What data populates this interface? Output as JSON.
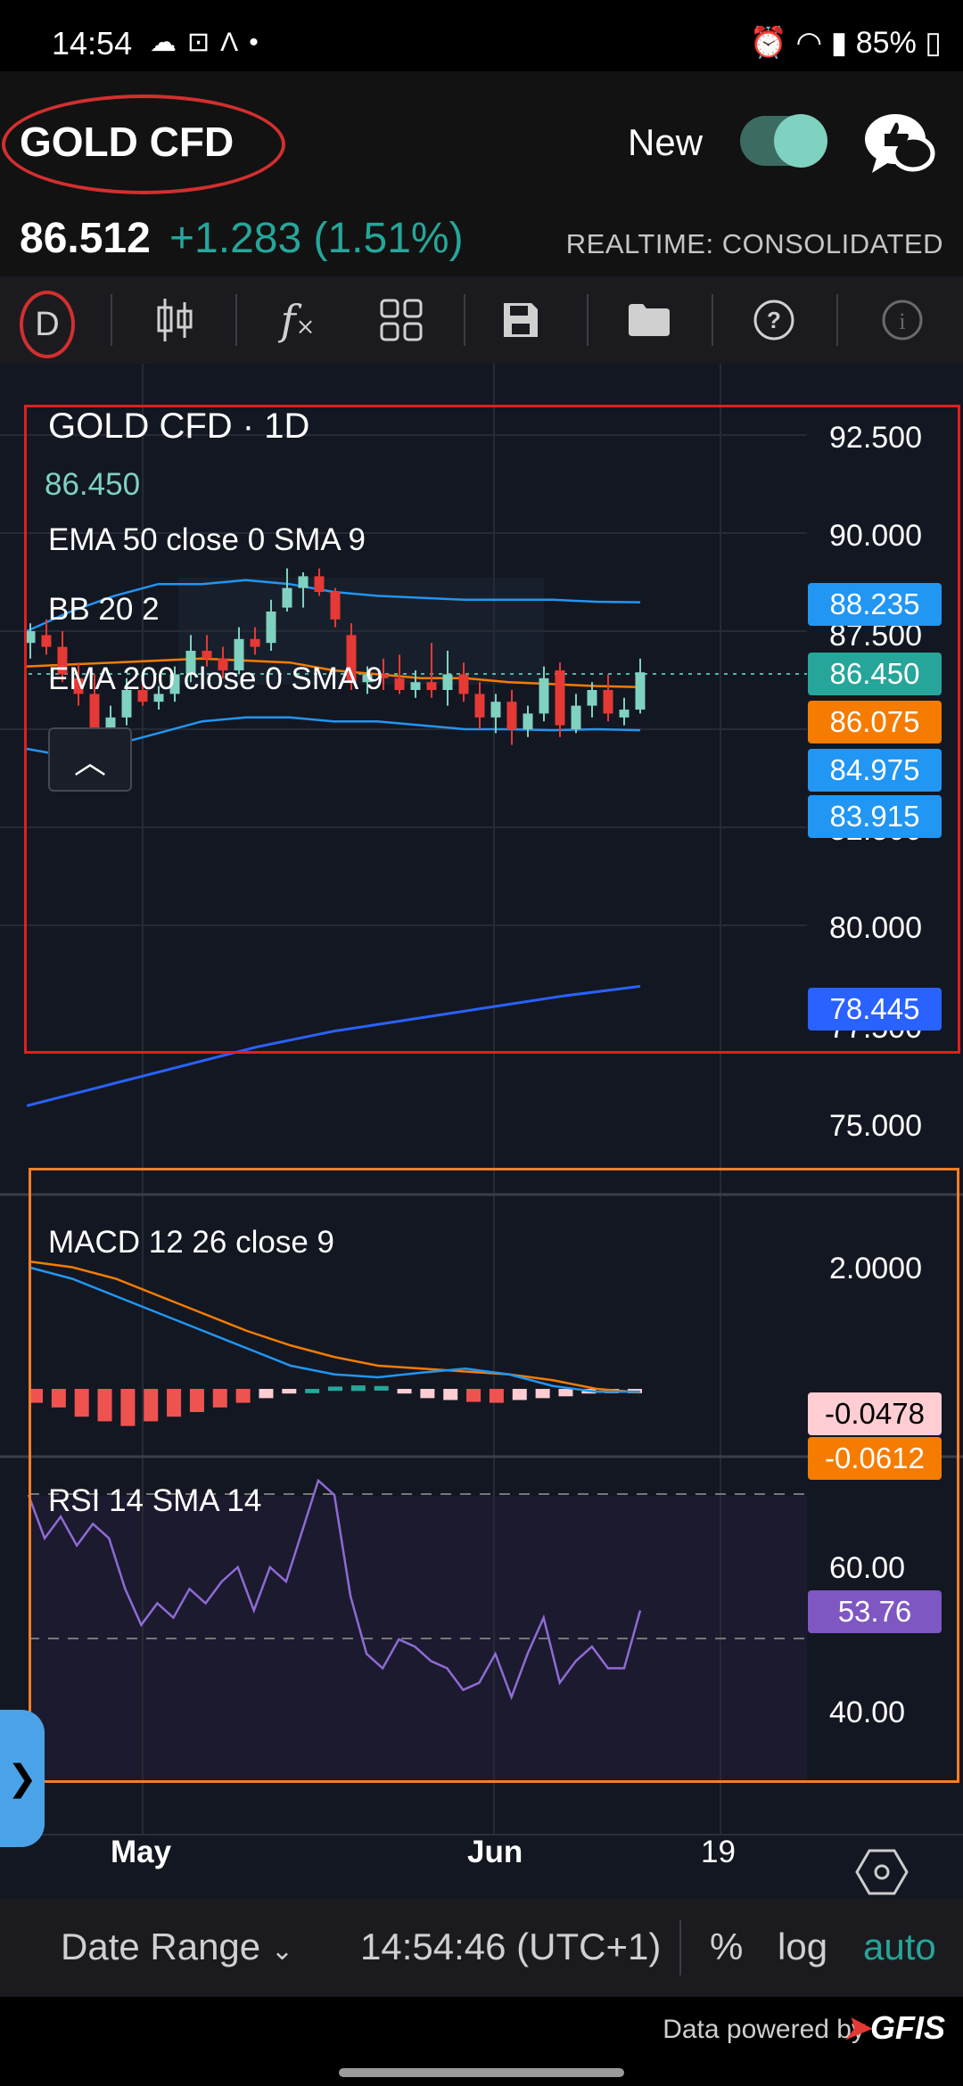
{
  "status_bar": {
    "time": "14:54",
    "left_icons": [
      "cloud-icon",
      "vpn-icon",
      "a-logo-icon",
      "dot-icon"
    ],
    "battery": "85%",
    "right_icons": [
      "alarm-icon",
      "wifi-icon",
      "signal-icon",
      "battery-icon"
    ]
  },
  "header": {
    "title": "GOLD CFD",
    "new_label": "New",
    "toggle_on": true,
    "price": "86.512",
    "change": "+1.283 (1.51%)",
    "realtime": "REALTIME: CONSOLIDATED"
  },
  "toolbar": {
    "interval": "D",
    "buttons": [
      "candles-icon",
      "function-icon",
      "layout-icon",
      "save-icon",
      "folder-icon",
      "help-icon",
      "info-icon"
    ]
  },
  "legend": {
    "symbol": "GOLD CFD · 1D",
    "last": "86.450",
    "ema50": "EMA 50 close 0 SMA 9",
    "bb": "BB 20 2",
    "ema200": "EMA 200 close 0 SMA 9",
    "macd": "MACD 12 26 close 9",
    "rsi": "RSI 14 SMA 14"
  },
  "price_axis": [
    "92.500",
    "90.000",
    "87.500",
    "82.500",
    "80.000",
    "77.500",
    "75.000"
  ],
  "price_tags": [
    {
      "value": "88.235",
      "color": "#2196f3"
    },
    {
      "value": "86.450",
      "color": "#26a69a"
    },
    {
      "value": "86.075",
      "color": "#f57c00"
    },
    {
      "value": "84.975",
      "color": "#2196f3"
    },
    {
      "value": "83.915",
      "color": "#2196f3"
    },
    {
      "value": "78.445",
      "color": "#2962ff"
    }
  ],
  "macd_axis": [
    "2.0000"
  ],
  "macd_tags": [
    {
      "value": "-0.0478",
      "color": "#ffcdd2",
      "text": "#000"
    },
    {
      "value": "-0.0612",
      "color": "#f57c00",
      "text": "#fff"
    }
  ],
  "rsi_axis": [
    "60.00",
    "40.00"
  ],
  "rsi_tag": {
    "value": "53.76",
    "color": "#7e57c2"
  },
  "x_axis": [
    "May",
    "Jun",
    "19"
  ],
  "bottom_bar": {
    "date_range": "Date Range",
    "time": "14:54:46 (UTC+1)",
    "percent": "%",
    "log": "log",
    "auto": "auto"
  },
  "footer": {
    "powered_by": "Data powered by",
    "brand": "GFIS"
  },
  "chart_data": {
    "type": "candlestick",
    "title": "GOLD CFD · 1D",
    "ylim": [
      74.0,
      93.5
    ],
    "candles": [
      {
        "o": 87.2,
        "h": 87.7,
        "l": 86.8,
        "c": 87.5
      },
      {
        "o": 87.4,
        "h": 87.8,
        "l": 86.9,
        "c": 87.1
      },
      {
        "o": 87.1,
        "h": 87.5,
        "l": 86.2,
        "c": 86.4
      },
      {
        "o": 86.3,
        "h": 86.7,
        "l": 85.6,
        "c": 85.9
      },
      {
        "o": 85.9,
        "h": 86.4,
        "l": 84.5,
        "c": 84.8
      },
      {
        "o": 84.9,
        "h": 85.6,
        "l": 84.7,
        "c": 85.3
      },
      {
        "o": 85.3,
        "h": 86.3,
        "l": 85.1,
        "c": 86.0
      },
      {
        "o": 86.0,
        "h": 86.2,
        "l": 85.6,
        "c": 85.7
      },
      {
        "o": 85.7,
        "h": 86.1,
        "l": 85.5,
        "c": 85.9
      },
      {
        "o": 85.9,
        "h": 86.6,
        "l": 85.7,
        "c": 86.4
      },
      {
        "o": 86.4,
        "h": 87.4,
        "l": 86.2,
        "c": 87.0
      },
      {
        "o": 87.0,
        "h": 87.4,
        "l": 86.6,
        "c": 86.8
      },
      {
        "o": 86.8,
        "h": 87.1,
        "l": 86.3,
        "c": 86.5
      },
      {
        "o": 86.5,
        "h": 87.6,
        "l": 86.4,
        "c": 87.3
      },
      {
        "o": 87.3,
        "h": 87.6,
        "l": 86.9,
        "c": 87.1
      },
      {
        "o": 87.2,
        "h": 88.3,
        "l": 87.0,
        "c": 88.0
      },
      {
        "o": 88.1,
        "h": 89.1,
        "l": 88.0,
        "c": 88.6
      },
      {
        "o": 88.6,
        "h": 89.0,
        "l": 88.1,
        "c": 88.9
      },
      {
        "o": 88.9,
        "h": 89.1,
        "l": 88.4,
        "c": 88.5
      },
      {
        "o": 88.5,
        "h": 88.6,
        "l": 87.6,
        "c": 87.8
      },
      {
        "o": 87.4,
        "h": 87.7,
        "l": 86.0,
        "c": 86.2
      },
      {
        "o": 86.2,
        "h": 86.6,
        "l": 85.9,
        "c": 86.4
      },
      {
        "o": 86.4,
        "h": 86.8,
        "l": 86.0,
        "c": 86.3
      },
      {
        "o": 86.3,
        "h": 86.9,
        "l": 85.9,
        "c": 86.0
      },
      {
        "o": 86.0,
        "h": 86.5,
        "l": 85.8,
        "c": 86.2
      },
      {
        "o": 86.2,
        "h": 87.2,
        "l": 85.8,
        "c": 86.0
      },
      {
        "o": 86.0,
        "h": 87.0,
        "l": 85.6,
        "c": 86.4
      },
      {
        "o": 86.4,
        "h": 86.7,
        "l": 85.7,
        "c": 85.9
      },
      {
        "o": 85.9,
        "h": 86.2,
        "l": 85.0,
        "c": 85.3
      },
      {
        "o": 85.3,
        "h": 85.9,
        "l": 84.9,
        "c": 85.7
      },
      {
        "o": 85.7,
        "h": 86.0,
        "l": 84.6,
        "c": 85.0
      },
      {
        "o": 85.0,
        "h": 85.6,
        "l": 84.8,
        "c": 85.4
      },
      {
        "o": 85.4,
        "h": 86.6,
        "l": 85.2,
        "c": 86.3
      },
      {
        "o": 86.5,
        "h": 86.7,
        "l": 84.8,
        "c": 85.1
      },
      {
        "o": 85.0,
        "h": 85.9,
        "l": 84.9,
        "c": 85.6
      },
      {
        "o": 85.6,
        "h": 86.2,
        "l": 85.3,
        "c": 86.0
      },
      {
        "o": 86.0,
        "h": 86.4,
        "l": 85.2,
        "c": 85.4
      },
      {
        "o": 85.3,
        "h": 85.8,
        "l": 85.1,
        "c": 85.5
      },
      {
        "o": 85.5,
        "h": 86.8,
        "l": 85.4,
        "c": 86.45
      }
    ],
    "bb_upper": [
      87.5,
      88.0,
      88.4,
      88.7,
      88.7,
      88.8,
      88.7,
      88.5,
      88.4,
      88.35,
      88.3,
      88.3,
      88.3,
      88.25,
      88.235
    ],
    "bb_lower": [
      84.5,
      84.3,
      84.6,
      84.9,
      85.2,
      85.3,
      85.3,
      85.2,
      85.2,
      85.1,
      85.0,
      85.0,
      84.975,
      85.0,
      84.975
    ],
    "ema50": [
      86.6,
      86.65,
      86.7,
      86.75,
      86.8,
      86.75,
      86.7,
      86.5,
      86.4,
      86.3,
      86.3,
      86.2,
      86.15,
      86.1,
      86.075
    ],
    "ema200": [
      75.4,
      75.9,
      76.4,
      76.9,
      77.3,
      77.6,
      77.9,
      78.2,
      78.445
    ],
    "macd_line": [
      2.1,
      1.9,
      1.6,
      1.3,
      1.0,
      0.7,
      0.4,
      0.25,
      0.2,
      0.28,
      0.35,
      0.25,
      0.05,
      -0.05,
      -0.0478
    ],
    "macd_signal": [
      2.2,
      2.1,
      1.9,
      1.6,
      1.3,
      1.0,
      0.75,
      0.55,
      0.4,
      0.35,
      0.3,
      0.25,
      0.15,
      0.0,
      -0.0612
    ],
    "macd_hist": [
      -0.15,
      -0.2,
      -0.3,
      -0.35,
      -0.4,
      -0.35,
      -0.3,
      -0.25,
      -0.2,
      -0.15,
      -0.1,
      -0.05,
      0.0,
      0.04,
      0.06,
      0.05,
      -0.05,
      -0.1,
      -0.12,
      -0.14,
      -0.15,
      -0.12,
      -0.1,
      -0.08,
      -0.05,
      -0.03,
      -0.02
    ],
    "rsi": [
      70,
      64,
      67,
      63,
      66,
      64,
      57,
      52,
      55,
      53,
      57,
      55,
      58,
      60,
      54,
      60,
      58,
      65,
      72,
      70,
      56,
      48,
      46,
      50,
      49,
      47,
      46,
      43,
      44,
      48,
      42,
      48,
      53,
      44,
      47,
      49,
      46,
      46,
      54
    ],
    "rsi_ylim": [
      30,
      72
    ]
  }
}
